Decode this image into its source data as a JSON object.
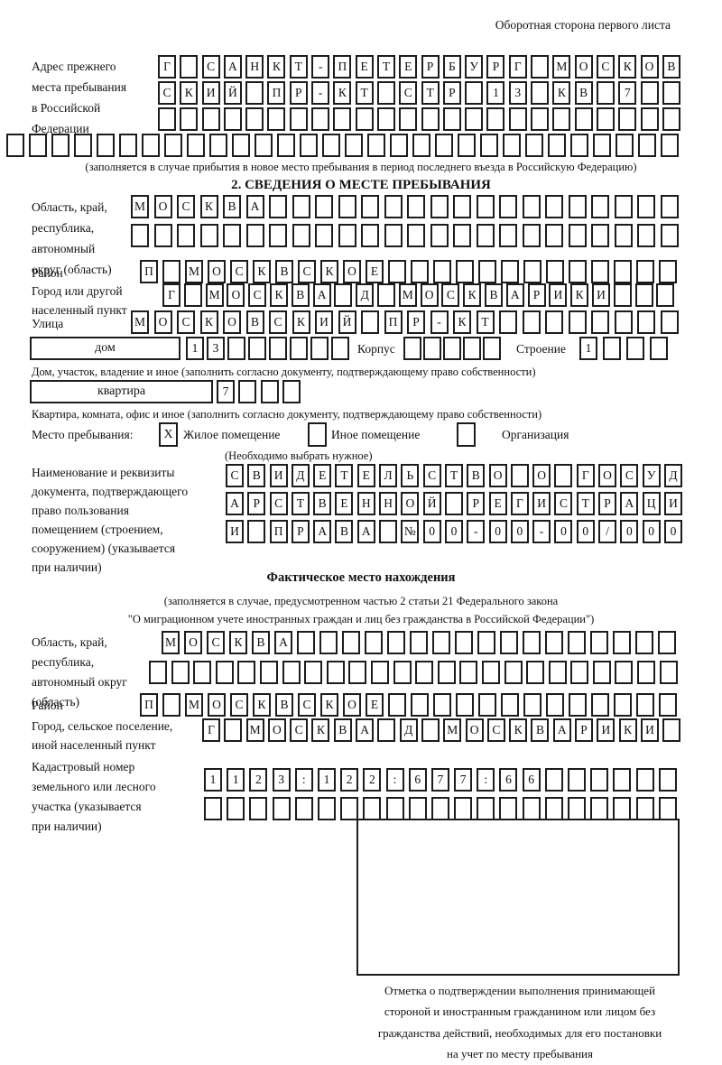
{
  "page": {
    "back_note": "Оборотная сторона первого листа"
  },
  "prev_address": {
    "label_lines": [
      "Адрес прежнего",
      "места пребывания",
      "в Российской",
      "Федерации"
    ],
    "row1": "Г САНКТ-ПЕТЕРБУРГ МОСКОВ",
    "row2": "СКИЙ ПР-КТ СТР 13 КВ 7  ",
    "row3": "                        ",
    "row4": "                              ",
    "caption": "(заполняется в случае прибытия в новое место пребывания в период последнего въезда в Российскую Федерацию)"
  },
  "section2": {
    "title": "2. СВЕДЕНИЯ О МЕСТЕ ПРЕБЫВАНИЯ",
    "oblast": {
      "label_lines": [
        "Область, край,",
        "республика,",
        "автономный",
        "округ (область)"
      ],
      "row1": "МОСКВА                  ",
      "row2": "                        "
    },
    "raion": {
      "label": "Район",
      "row": "П МОСКВСКОЕ             "
    },
    "gorod": {
      "label_lines": [
        "Город или другой",
        "населенный пункт"
      ],
      "row": "Г МОСКВА Д МОСКВАРИКИ   "
    },
    "ulitsa": {
      "label": "Улица",
      "row": "МОСКОВСКИЙ ПР-КТ        "
    },
    "dom": {
      "box_label": "дом",
      "cells": "13      ",
      "korpus_label": "Корпус",
      "korpus_cells": "     ",
      "stroenie_label": "Строение",
      "stroenie_cells": "1   ",
      "caption": "Дом, участок, владение и иное (заполнить согласно документу, подтверждающему право собственности)"
    },
    "kvartira": {
      "box_label": "квартира",
      "cells": "7   ",
      "caption": "Квартира, комната, офис и иное (заполнить согласно документу, подтверждающему право собственности)"
    },
    "mesto": {
      "label": "Место пребывания:",
      "options": [
        {
          "label": "Жилое помещение",
          "mark": "X"
        },
        {
          "label": "Иное помещение",
          "mark": ""
        },
        {
          "label": "Организация",
          "mark": ""
        }
      ],
      "note": "(Необходимо выбрать нужное)"
    },
    "doc": {
      "label_lines": [
        "Наименование и реквизиты",
        "документа, подтверждающего",
        "право пользования",
        "помещением (строением,",
        "сооружением) (указывается",
        "при наличии)"
      ],
      "row1": "СВИДЕТЕЛЬСТВО О ГОСУД",
      "row2": "АРСТВЕННОЙ РЕГИСТРАЦИ",
      "row3": "И ПРАВА №00-00-00/000"
    }
  },
  "fact": {
    "title": "Фактическое место нахождения",
    "note_lines": [
      "(заполняется в случае, предусмотренном частью 2 статьи 21 Федерального закона",
      "\"О миграционном учете иностранных граждан и лиц без гражданства в Российской Федерации\")"
    ],
    "oblast": {
      "label_lines": [
        "Область, край,",
        "республика,",
        "автономный округ",
        "(область)"
      ],
      "row1": "МОСКВА                 ",
      "row2": "                        "
    },
    "raion": {
      "label": "Район",
      "row": "П МОСКВСКОЕ             "
    },
    "gorod": {
      "label_lines": [
        "Город, сельское поселение,",
        "иной населенный пункт"
      ],
      "row": "Г МОСКВА Д МОСКВАРИКИ "
    },
    "kadastr": {
      "label_lines": [
        "Кадастровый номер",
        "земельного или лесного",
        "участка (указывается",
        "при наличии)"
      ],
      "row1": "1123:122:677:66      ",
      "row2": "                     "
    },
    "otmetka_lines": [
      "Отметка о подтверждении выполнения принимающей",
      "стороной и иностранным гражданином или лицом без",
      "гражданства действий, необходимых для его постановки",
      "на учет по месту пребывания"
    ]
  }
}
